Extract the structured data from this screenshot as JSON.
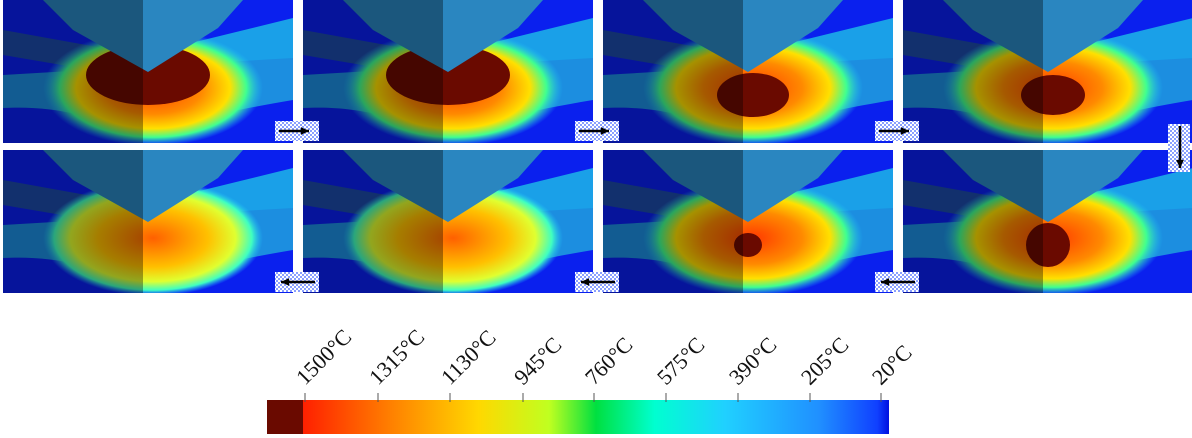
{
  "colorbar": {
    "labels": [
      "1500°C",
      "1315°C",
      "1130°C",
      "945°C",
      "760°C",
      "575°C",
      "390°C",
      "205°C",
      "20°C"
    ]
  }
}
